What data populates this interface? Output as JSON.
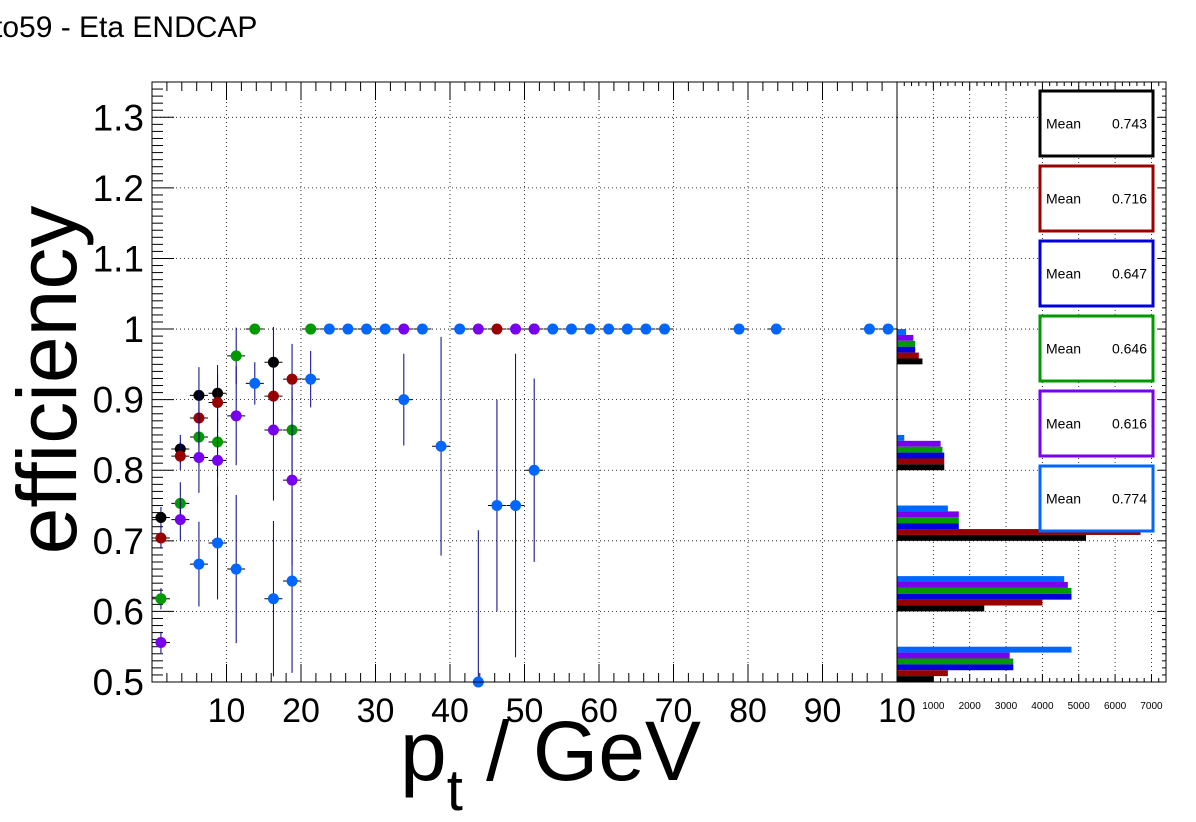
{
  "title": "to59 - Eta ENDCAP",
  "chart_data": [
    {
      "type": "scatter",
      "xlabel_main": "p",
      "xlabel_sub": "t",
      "xlabel_rest": " / GeV",
      "ylabel": "efficiency",
      "xlim": [
        0,
        100
      ],
      "ylim": [
        0.5,
        1.35
      ],
      "x_ticks": [
        10,
        20,
        30,
        40,
        50,
        60,
        70,
        80,
        90
      ],
      "x_last_tick_label": "10",
      "y_ticks": [
        0.5,
        0.6,
        0.7,
        0.8,
        0.9,
        1,
        1.1,
        1.2,
        1.3
      ],
      "y_tick_labels": [
        "0.5",
        "0.6",
        "0.7",
        "0.8",
        "0.9",
        "1",
        "1.1",
        "1.2",
        "1.3"
      ],
      "grid": true,
      "series": [
        {
          "color": "#000000",
          "points": [
            {
              "x": 1.2,
              "y": 0.733,
              "ey": 0.015
            },
            {
              "x": 3.8,
              "y": 0.83,
              "ey": 0.02
            },
            {
              "x": 6.3,
              "y": 0.906,
              "ey": 0.04
            },
            {
              "x": 8.8,
              "y": 0.909,
              "ey": 0.04
            },
            {
              "x": 16.3,
              "y": 0.953,
              "ey": 0.05
            }
          ]
        },
        {
          "color": "#990000",
          "points": [
            {
              "x": 1.2,
              "y": 0.704,
              "ey": 0.015
            },
            {
              "x": 3.8,
              "y": 0.82,
              "ey": 0.02
            },
            {
              "x": 6.3,
              "y": 0.874,
              "ey": 0.04
            },
            {
              "x": 8.8,
              "y": 0.896,
              "ey": 0.04
            },
            {
              "x": 16.3,
              "y": 0.905,
              "ey": 0.05
            },
            {
              "x": 18.8,
              "y": 0.929,
              "ey": 0.05
            },
            {
              "x": 46.3,
              "y": 1.0,
              "ey": 0
            },
            {
              "x": 51.3,
              "y": 1.0,
              "ey": 0
            }
          ]
        },
        {
          "color": "#009900",
          "points": [
            {
              "x": 1.2,
              "y": 0.618,
              "ey": 0.015
            },
            {
              "x": 3.8,
              "y": 0.753,
              "ey": 0.03
            },
            {
              "x": 6.3,
              "y": 0.847,
              "ey": 0.04
            },
            {
              "x": 8.8,
              "y": 0.84,
              "ey": 0.05
            },
            {
              "x": 11.3,
              "y": 0.962,
              "ey": 0.04
            },
            {
              "x": 13.8,
              "y": 1.0,
              "ey": 0
            },
            {
              "x": 18.8,
              "y": 0.857,
              "ey": 0.06
            },
            {
              "x": 21.3,
              "y": 1.0,
              "ey": 0
            }
          ]
        },
        {
          "color": "#7700ee",
          "points": [
            {
              "x": 1.2,
              "y": 0.556,
              "ey": 0.015
            },
            {
              "x": 3.8,
              "y": 0.73,
              "ey": 0.03
            },
            {
              "x": 6.3,
              "y": 0.818,
              "ey": 0.05
            },
            {
              "x": 8.8,
              "y": 0.814,
              "ey": 0.06
            },
            {
              "x": 11.3,
              "y": 0.877,
              "ey": 0.07
            },
            {
              "x": 16.3,
              "y": 0.857,
              "ey": 0.1
            },
            {
              "x": 18.8,
              "y": 0.786,
              "ey": 0.12
            },
            {
              "x": 33.8,
              "y": 1.0,
              "ey": 0
            },
            {
              "x": 43.8,
              "y": 1.0,
              "ey": 0
            },
            {
              "x": 48.8,
              "y": 1.0,
              "ey": 0
            },
            {
              "x": 51.3,
              "y": 1.0,
              "ey": 0
            }
          ]
        },
        {
          "color": "#0066ff",
          "points": [
            {
              "x": 6.3,
              "y": 0.667,
              "ey": 0.06
            },
            {
              "x": 8.8,
              "y": 0.697,
              "ey": 0.08
            },
            {
              "x": 11.3,
              "y": 0.66,
              "ey": 0.105
            },
            {
              "x": 13.8,
              "y": 0.923,
              "ey": 0.03
            },
            {
              "x": 16.3,
              "y": 0.618,
              "ey": 0.11
            },
            {
              "x": 18.8,
              "y": 0.643,
              "ey": 0.13
            },
            {
              "x": 21.3,
              "y": 0.929,
              "ey": 0.04
            },
            {
              "x": 23.8,
              "y": 1.0,
              "ey": 0
            },
            {
              "x": 26.3,
              "y": 1.0,
              "ey": 0
            },
            {
              "x": 28.8,
              "y": 1.0,
              "ey": 0
            },
            {
              "x": 31.3,
              "y": 1.0,
              "ey": 0
            },
            {
              "x": 33.8,
              "y": 0.9,
              "ey": 0.065
            },
            {
              "x": 36.3,
              "y": 1.0,
              "ey": 0
            },
            {
              "x": 38.8,
              "y": 0.834,
              "ey": 0.155
            },
            {
              "x": 41.3,
              "y": 1.0,
              "ey": 0
            },
            {
              "x": 43.8,
              "y": 0.5,
              "ey": 0.215
            },
            {
              "x": 46.3,
              "y": 0.75,
              "ey": 0.15
            },
            {
              "x": 48.8,
              "y": 0.75,
              "ey": 0.215
            },
            {
              "x": 51.3,
              "y": 0.8,
              "ey": 0.13
            },
            {
              "x": 53.8,
              "y": 1.0,
              "ey": 0
            },
            {
              "x": 56.3,
              "y": 1.0,
              "ey": 0
            },
            {
              "x": 58.8,
              "y": 1.0,
              "ey": 0
            },
            {
              "x": 61.3,
              "y": 1.0,
              "ey": 0
            },
            {
              "x": 63.8,
              "y": 1.0,
              "ey": 0
            },
            {
              "x": 66.3,
              "y": 1.0,
              "ey": 0
            },
            {
              "x": 68.8,
              "y": 1.0,
              "ey": 0
            },
            {
              "x": 78.8,
              "y": 1.0,
              "ey": 0
            },
            {
              "x": 83.8,
              "y": 1.0,
              "ey": 0
            },
            {
              "x": 96.3,
              "y": 1.0,
              "ey": 0
            },
            {
              "x": 98.8,
              "y": 1.0,
              "ey": 0
            }
          ]
        }
      ]
    },
    {
      "type": "bar",
      "orientation": "horizontal",
      "xlim": [
        0,
        7400
      ],
      "ylim": [
        0.5,
        1.35
      ],
      "x_ticks": [
        1000,
        2000,
        3000,
        4000,
        5000,
        6000,
        7000
      ],
      "x_tick_labels": [
        "1000",
        "2000",
        "3000",
        "4000",
        "5000",
        "6000",
        "7000"
      ],
      "bin_width": 0.1,
      "bins": [
        0.55,
        0.65,
        0.75,
        0.85,
        1.0
      ],
      "series": [
        {
          "color": "#000000",
          "values": [
            1000,
            2400,
            5200,
            1300,
            700
          ],
          "mean_label": "Mean",
          "mean_value": "0.743"
        },
        {
          "color": "#990000",
          "values": [
            1400,
            4000,
            6700,
            1300,
            600
          ],
          "mean_label": "Mean",
          "mean_value": "0.716"
        },
        {
          "color": "#0000dd",
          "values": [
            3200,
            4800,
            1700,
            1300,
            500
          ],
          "mean_label": "Mean",
          "mean_value": "0.647"
        },
        {
          "color": "#009900",
          "values": [
            3200,
            4800,
            1700,
            1250,
            500
          ],
          "mean_label": "Mean",
          "mean_value": "0.646"
        },
        {
          "color": "#7700ee",
          "values": [
            3100,
            4700,
            1700,
            1200,
            450
          ],
          "mean_label": "Mean",
          "mean_value": "0.616"
        },
        {
          "color": "#0066ff",
          "values": [
            4800,
            4600,
            1400,
            200,
            250
          ],
          "mean_label": "Mean",
          "mean_value": "0.774"
        }
      ]
    }
  ]
}
